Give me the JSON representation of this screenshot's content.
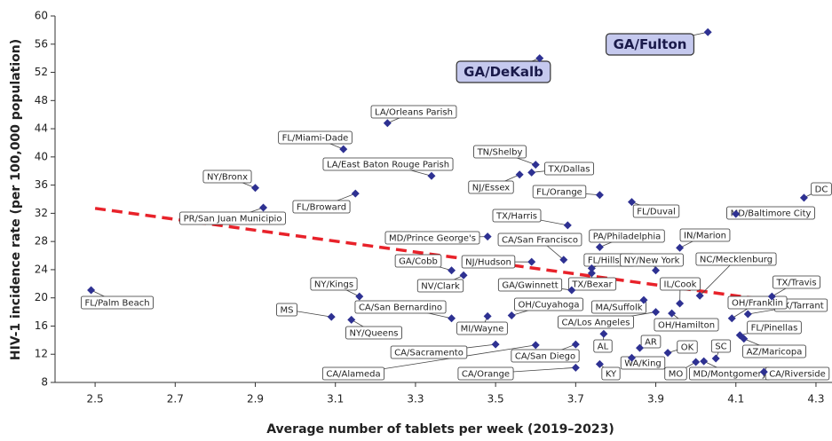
{
  "chart_data": {
    "type": "scatter",
    "xlabel": "Average number of tablets per week (2019–2023)",
    "ylabel": "HIV-1 incidence rate (per 100,000 population)",
    "point_labels": [
      "FL/Palm Beach",
      "NY/Bronx",
      "PR/San Juan Municipio",
      "FL/Miami-Dade",
      "LA/Orleans Parish",
      "LA/East Baton Rouge Parish",
      "FL/Broward",
      "NY/Kings",
      "MS",
      "NY/Queens",
      "CA/San Bernardino",
      "CA/Sacramento",
      "CA/Alameda",
      "CA/San Diego",
      "CA/Orange",
      "MI/Wayne",
      "OH/Cuyahoga",
      "GA/DeKalb",
      "GA/Fulton",
      "TN/Shelby",
      "TX/Dallas",
      "NJ/Essex",
      "FL/Orange",
      "FL/Duval",
      "DC",
      "MD/Baltimore City",
      "TX/Harris",
      "MD/Prince George's",
      "CA/San Francisco",
      "PA/Philadelphia",
      "IN/Marion",
      "GA/Cobb",
      "NJ/Hudson",
      "NV/Clark",
      "FL/Hillsbo",
      "NY/New York",
      "NC/Mecklenburg",
      "GA/Gwinnett",
      "TX/Bexar",
      "MA/Suffolk",
      "IL/Cook",
      "TX/Travis",
      "TX/Tarrant",
      "OH/Hamilton",
      "OH/Franklin",
      "FL/Pinellas",
      "AZ/Maricopa",
      "CA/Los Angeles",
      "AL",
      "AR",
      "SC",
      "OK",
      "WA/King",
      "KY",
      "MO",
      "MD/Montgomery",
      "CA/Riverside"
    ],
    "x": [
      2.49,
      2.9,
      2.92,
      3.12,
      3.23,
      3.34,
      3.15,
      3.16,
      3.09,
      3.14,
      3.39,
      3.5,
      3.6,
      3.7,
      3.7,
      3.48,
      3.54,
      3.61,
      4.03,
      3.6,
      3.59,
      3.56,
      3.76,
      3.84,
      4.27,
      4.1,
      3.68,
      3.48,
      3.67,
      3.76,
      3.96,
      3.39,
      3.59,
      3.42,
      3.74,
      3.9,
      4.01,
      3.69,
      3.74,
      3.87,
      3.96,
      4.19,
      4.13,
      3.94,
      4.09,
      4.11,
      4.12,
      3.9,
      3.77,
      3.86,
      4.05,
      3.93,
      3.84,
      3.76,
      4.0,
      4.02,
      4.17
    ],
    "values": [
      21.1,
      35.6,
      32.8,
      41.1,
      44.8,
      37.3,
      34.8,
      20.2,
      17.3,
      16.9,
      17.1,
      13.4,
      13.3,
      13.4,
      10.1,
      17.4,
      17.5,
      54.0,
      57.7,
      38.9,
      37.8,
      37.5,
      34.6,
      33.6,
      34.2,
      31.9,
      30.3,
      28.7,
      25.4,
      27.2,
      27.1,
      23.9,
      25.1,
      23.2,
      24.2,
      23.9,
      20.3,
      21.1,
      23.5,
      19.7,
      19.2,
      20.2,
      17.7,
      17.8,
      17.1,
      14.7,
      14.2,
      18.0,
      14.9,
      12.9,
      11.4,
      12.2,
      11.5,
      10.6,
      10.9,
      11.0,
      9.5
    ],
    "color": "#2e3192",
    "highlighted": [
      17,
      18
    ],
    "trendline": {
      "x": [
        2.5,
        4.19
      ],
      "y": [
        32.7,
        19.6
      ],
      "color": "#e8222a"
    },
    "xlim": [
      2.4,
      4.34
    ],
    "ylim": [
      8,
      60
    ],
    "xticks": [
      2.5,
      2.7,
      2.9,
      3.1,
      3.3,
      3.5,
      3.7,
      3.9,
      4.1,
      4.3
    ],
    "yticks": [
      8,
      12,
      16,
      20,
      24,
      28,
      32,
      36,
      40,
      44,
      48,
      52,
      56,
      60
    ]
  }
}
